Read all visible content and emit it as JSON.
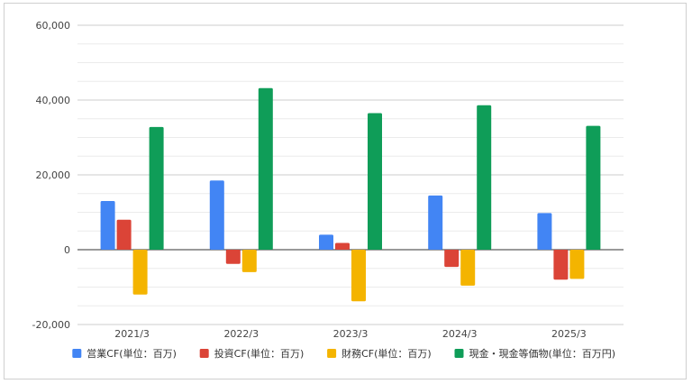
{
  "chart_data": {
    "type": "bar",
    "title": "",
    "xlabel": "",
    "ylabel": "",
    "ylim": [
      -20000,
      60000
    ],
    "y_ticks": [
      -20000,
      0,
      20000,
      40000,
      60000
    ],
    "y_tick_labels": [
      "-20,000",
      "0",
      "20,000",
      "40,000",
      "60,000"
    ],
    "categories": [
      "2021/3",
      "2022/3",
      "2023/3",
      "2024/3",
      "2025/3"
    ],
    "grid": true,
    "legend_position": "bottom",
    "series": [
      {
        "name": "営業CF(単位：百万)",
        "color": "#4285f4",
        "values": [
          13000,
          18500,
          4000,
          14500,
          9800
        ]
      },
      {
        "name": "投資CF(単位：百万)",
        "color": "#db4437",
        "values": [
          8000,
          -3800,
          1800,
          -4600,
          -8000
        ]
      },
      {
        "name": "財務CF(単位：百万)",
        "color": "#f4b400",
        "values": [
          -12000,
          -6000,
          -13800,
          -9600,
          -7800
        ]
      },
      {
        "name": "現金・現金等価物(単位：百万円)",
        "color": "#0f9d58",
        "values": [
          32800,
          43200,
          36500,
          38600,
          33100
        ]
      }
    ]
  }
}
